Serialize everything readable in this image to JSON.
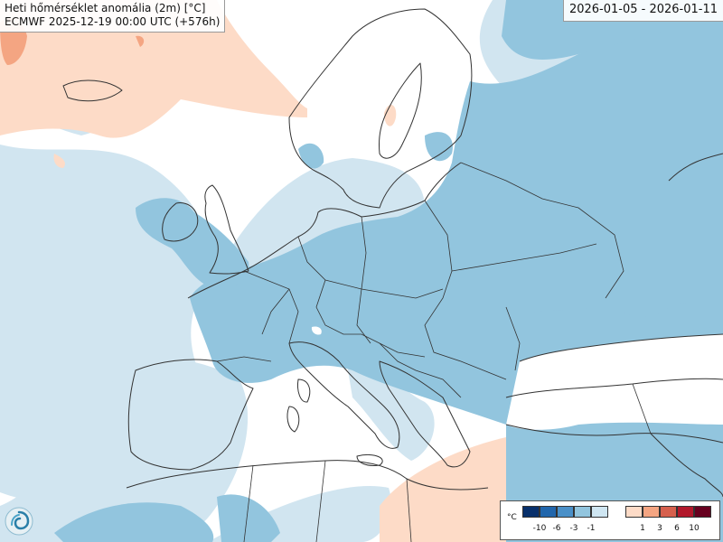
{
  "header": {
    "title": "Heti hőmérséklet anomália (2m) [°C]",
    "subtitle": "ECMWF 2025-12-19 00:00 UTC (+576h)"
  },
  "date_range": "2026-01-05 - 2026-01-11",
  "legend": {
    "unit": "°C",
    "cold_labels": [
      "-10",
      "-6",
      "-3",
      "-1"
    ],
    "warm_labels": [
      "1",
      "3",
      "6",
      "10"
    ],
    "cold_colors": [
      "#08306b",
      "#2166ac",
      "#4a90c8",
      "#92c5de",
      "#cfe6f2"
    ],
    "warm_colors": [
      "#fddbc7",
      "#f4a582",
      "#d6604d",
      "#b2182b",
      "#67001f"
    ]
  },
  "map_colors": {
    "sea": "#ffffff",
    "anomaly_-1_to_-3": "#92c5de",
    "anomaly_0_to_-1": "#d1e5f0",
    "anomaly_0_to_1": "#fddbc7",
    "anomaly_1_to_3": "#f4a582",
    "coastline": "#333333"
  },
  "logo": "ecmwf-logo-icon"
}
